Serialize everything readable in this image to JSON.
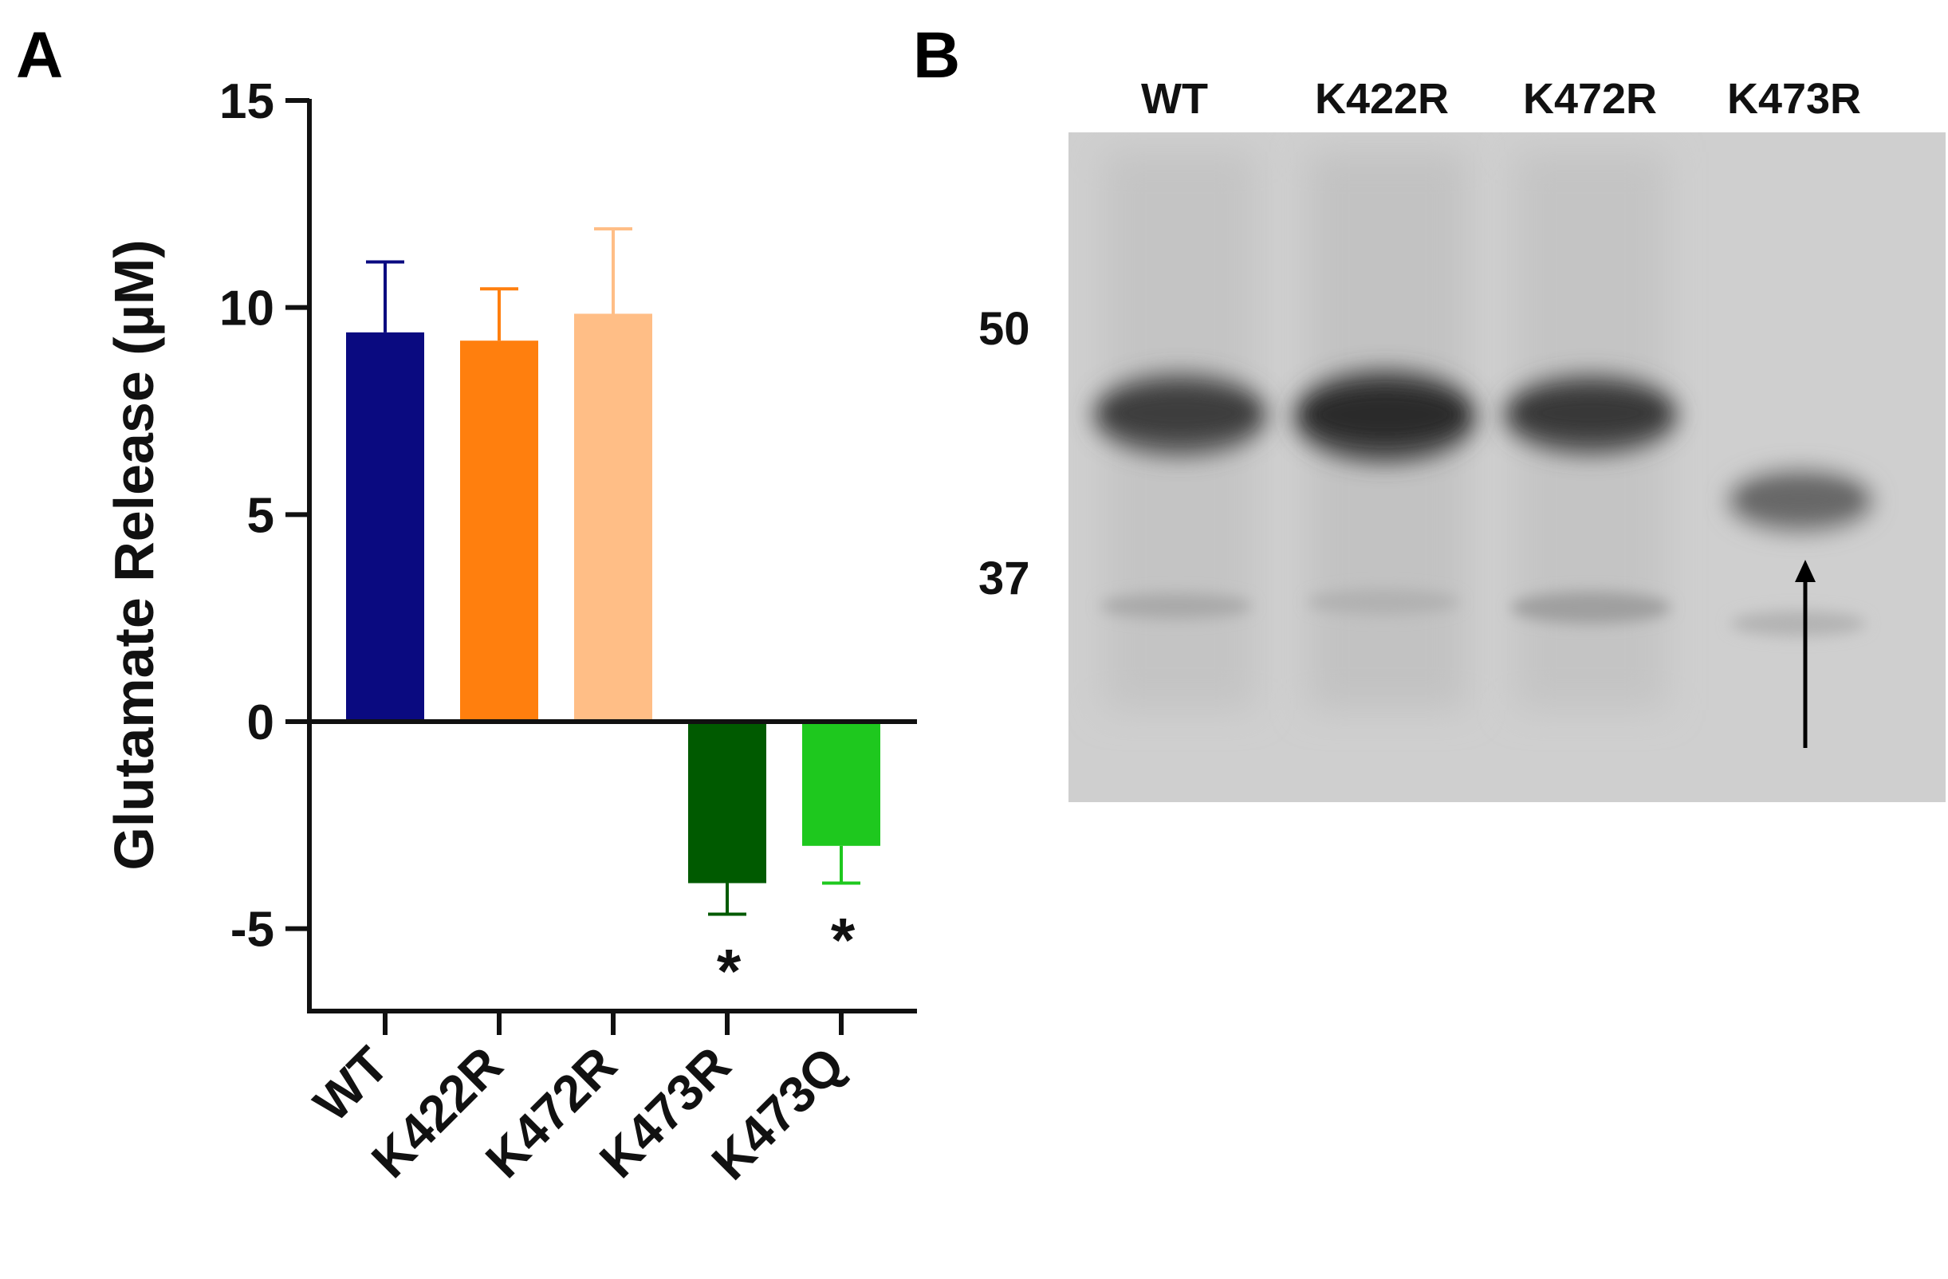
{
  "panel_a": {
    "letter": "A"
  },
  "panel_b": {
    "letter": "B",
    "lanes": [
      "WT",
      "K422R",
      "K472R",
      "K473R"
    ],
    "mw_markers": [
      "50",
      "37"
    ]
  },
  "chart_data": {
    "type": "bar",
    "ylabel": "Glutamate Release (µM)",
    "xlabel": "",
    "ylim": [
      -7,
      15
    ],
    "yticks": [
      -5,
      0,
      5,
      10,
      15
    ],
    "ytick_labels": [
      "-5",
      "0",
      "5",
      "10",
      "15"
    ],
    "categories": [
      "WT",
      "K422R",
      "K472R",
      "K473R",
      "K473Q"
    ],
    "values": [
      9.4,
      9.2,
      9.85,
      -3.9,
      -3.0
    ],
    "errors": [
      1.7,
      1.25,
      2.05,
      0.75,
      0.9
    ],
    "colors": [
      "#0a0a80",
      "#ff7f0e",
      "#ffbe86",
      "#005a00",
      "#1ec81e"
    ],
    "significance": [
      "",
      "",
      "",
      "*",
      "*"
    ],
    "grid": false,
    "legend": "none"
  }
}
